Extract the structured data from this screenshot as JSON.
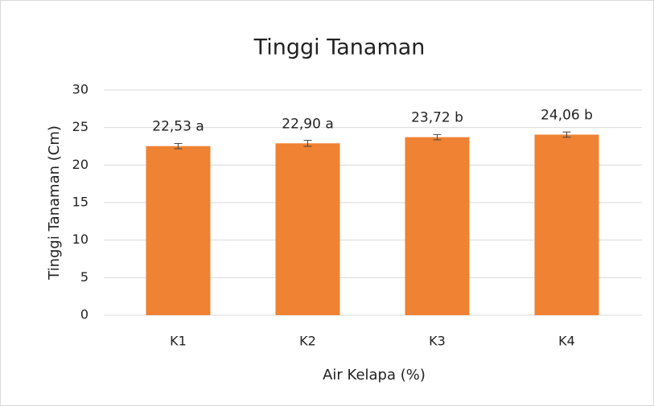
{
  "chart_data": {
    "type": "bar",
    "title": "Tinggi Tanaman",
    "x_label": "Air Kelapa (%)",
    "y_label": "Tinggi Tanaman (Cm)",
    "categories": [
      "K1",
      "K2",
      "K3",
      "K4"
    ],
    "values": [
      22.53,
      22.9,
      23.72,
      24.06
    ],
    "value_labels": [
      "22,53 a",
      "22,90 a",
      "23,72 b",
      "24,06 b"
    ],
    "errors": [
      0.35,
      0.4,
      0.35,
      0.35
    ],
    "color": "#ef8233",
    "ylim": [
      0,
      30
    ],
    "yticks": [
      0,
      5,
      10,
      15,
      20,
      25,
      30
    ],
    "grid": true
  }
}
